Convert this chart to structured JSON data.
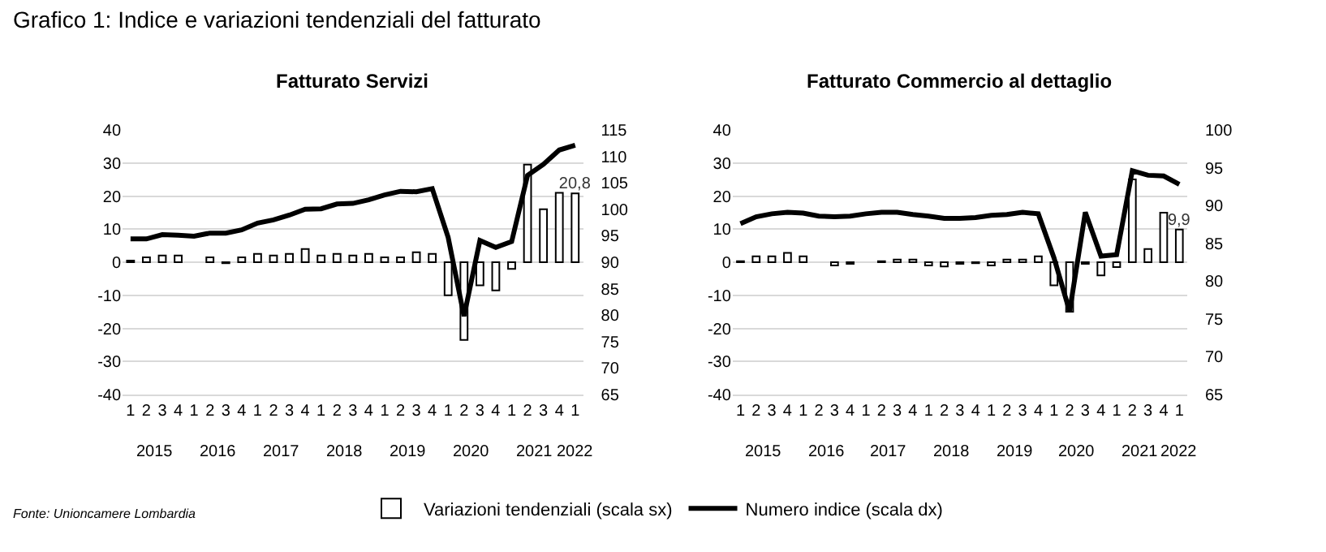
{
  "chart_data": [
    {
      "type": "bar",
      "title": "Grafico 1: Indice e variazioni tendenziali del fatturato",
      "subtitle": "Fatturato Servizi",
      "categories": [
        "1",
        "2",
        "3",
        "4",
        "1",
        "2",
        "3",
        "4",
        "1",
        "2",
        "3",
        "4",
        "1",
        "2",
        "3",
        "4",
        "1",
        "2",
        "3",
        "4",
        "1",
        "2",
        "3",
        "4",
        "1",
        "2",
        "3",
        "4",
        "1"
      ],
      "series": [
        {
          "name": "Variazioni tendenziali (scala sx)",
          "color": "#ffffff",
          "values": [
            0.5,
            1.5,
            2,
            2,
            null,
            1.5,
            -0.3,
            1.5,
            2.5,
            2,
            2.5,
            4,
            2,
            2.5,
            2,
            2.5,
            1.5,
            1.5,
            3,
            2.5,
            -10,
            -23.5,
            -7,
            -8.5,
            -2,
            29.5,
            16,
            21,
            20.8
          ],
          "value_labels": [
            null,
            null,
            null,
            null,
            null,
            null,
            null,
            null,
            null,
            null,
            null,
            null,
            null,
            null,
            null,
            null,
            null,
            null,
            null,
            null,
            null,
            null,
            null,
            null,
            null,
            null,
            null,
            null,
            "20,8"
          ]
        },
        {
          "name": "Numero indice (scala dx)",
          "type": "line",
          "axis": "y2",
          "color": "#000000",
          "values": [
            94.4,
            94.4,
            95.2,
            95.1,
            94.9,
            95.5,
            95.5,
            96.1,
            97.4,
            98,
            98.9,
            100,
            100.1,
            101,
            101.1,
            101.8,
            102.7,
            103.4,
            103.3,
            103.9,
            94.7,
            79.8,
            94.1,
            92.8,
            93.9,
            106.4,
            108.5,
            111.2,
            112.1
          ]
        }
      ],
      "ylim": [
        -40,
        40
      ],
      "yticks": [
        -40,
        -30,
        -20,
        -10,
        0,
        10,
        20,
        30,
        40
      ],
      "y2lim": [
        65,
        115
      ],
      "y2ticks": [
        65,
        70,
        75,
        80,
        85,
        90,
        95,
        100,
        105,
        110,
        115
      ],
      "grid": "y",
      "legend": "bottom",
      "line_style": "solid",
      "annotations": [
        "2015",
        "2016",
        "2017",
        "2018",
        "2019",
        "2020",
        "2021",
        "2022",
        "Fonte: Unioncamere Lombardia"
      ]
    },
    {
      "type": "bar",
      "subtitle": "Fatturato Commercio al dettaglio",
      "categories": [
        "1",
        "2",
        "3",
        "4",
        "1",
        "2",
        "3",
        "4",
        "1",
        "2",
        "3",
        "4",
        "1",
        "2",
        "3",
        "4",
        "1",
        "2",
        "3",
        "4",
        "1",
        "2",
        "3",
        "4",
        "1",
        "2",
        "3",
        "4",
        "1"
      ],
      "series": [
        {
          "color": "#ffffff",
          "values": [
            0.3,
            1.8,
            1.8,
            2.8,
            1.8,
            null,
            -1,
            -0.5,
            null,
            0.3,
            0.8,
            0.8,
            -1,
            -1.3,
            -0.5,
            -0.3,
            -1,
            0.8,
            0.8,
            1.8,
            -7,
            -15,
            -0.5,
            -4,
            -1.5,
            25,
            4,
            15,
            9.9
          ],
          "value_labels": [
            null,
            null,
            null,
            null,
            null,
            null,
            null,
            null,
            null,
            null,
            null,
            null,
            null,
            null,
            null,
            null,
            null,
            null,
            null,
            null,
            null,
            null,
            null,
            null,
            null,
            null,
            null,
            null,
            "9,9"
          ]
        },
        {
          "type": "line",
          "axis": "y2",
          "color": "#000000",
          "values": [
            87.6,
            88.5,
            88.9,
            89.1,
            89,
            88.6,
            88.5,
            88.6,
            88.9,
            89.1,
            89.1,
            88.8,
            88.6,
            88.3,
            88.3,
            88.4,
            88.7,
            88.8,
            89.1,
            88.9,
            83.1,
            76,
            89.1,
            83.3,
            83.5,
            94.6,
            94,
            93.9,
            92.8
          ]
        }
      ],
      "ylim": [
        -40,
        40
      ],
      "yticks": [
        -40,
        -30,
        -20,
        -10,
        0,
        10,
        20,
        30,
        40
      ],
      "y2lim": [
        65,
        100
      ],
      "y2ticks": [
        65,
        70,
        75,
        80,
        85,
        90,
        95,
        100
      ],
      "grid": "y",
      "line_style": "solid",
      "annotations": [
        "2015",
        "2016",
        "2017",
        "2018",
        "2019",
        "2020",
        "2021",
        "2022"
      ]
    }
  ]
}
